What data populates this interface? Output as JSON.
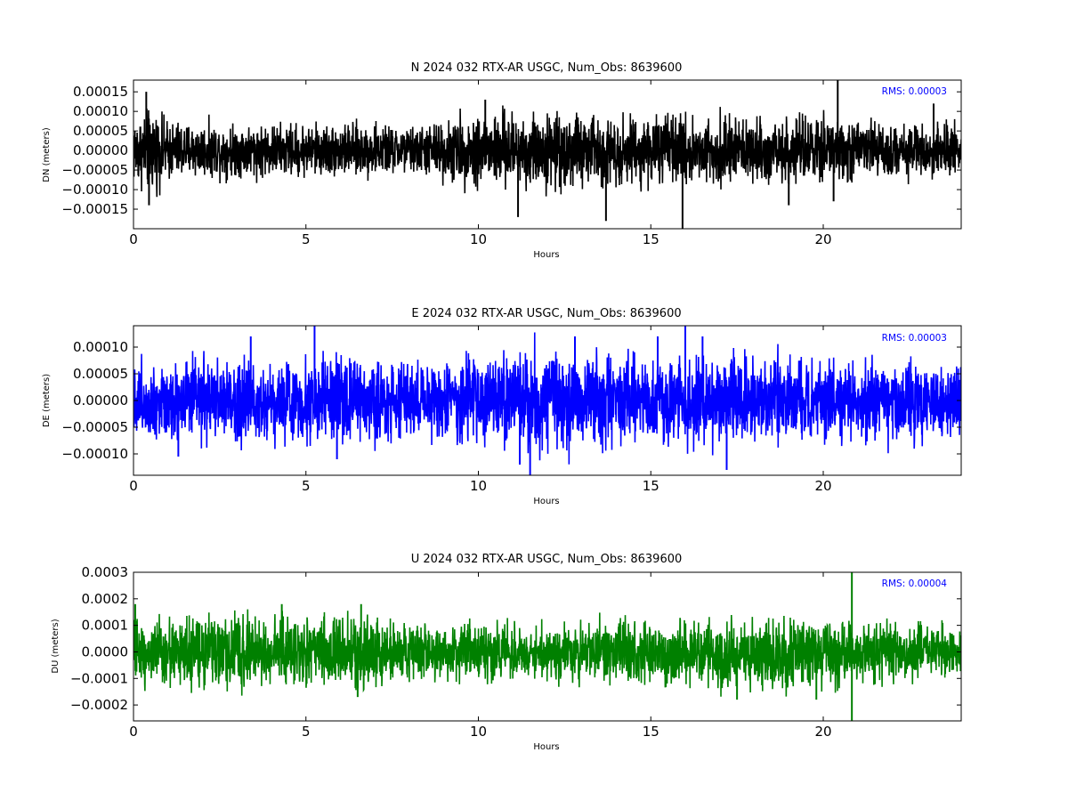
{
  "figure": {
    "background": "#ffffff"
  },
  "chart_data": [
    {
      "type": "line",
      "title": "N 2024 032 RTX-AR  USGC, Num_Obs: 8639600",
      "xlabel": "Hours",
      "ylabel": "DN (meters)",
      "xlim": [
        0,
        24
      ],
      "ylim": [
        -0.0002,
        0.00018
      ],
      "xticks": [
        0,
        5,
        10,
        15,
        20
      ],
      "xtick_labels": [
        "0",
        "5",
        "10",
        "15",
        "20"
      ],
      "yticks": [
        -0.00015,
        -0.0001,
        -5e-05,
        0.0,
        5e-05,
        0.0001,
        0.00015
      ],
      "ytick_labels": [
        "−0.00015",
        "−0.00010",
        "−0.00005",
        "0.00000",
        "0.00005",
        "0.00010",
        "0.00015"
      ],
      "annotation": "RMS:  0.00003",
      "annotation_color": "#0000ff",
      "color": "#000000",
      "series": [
        {
          "envelope": {
            "x": [
              0,
              0.5,
              1,
              2,
              3,
              4,
              5,
              6,
              7,
              8,
              9,
              10,
              11,
              12,
              13,
              14,
              15,
              16,
              17,
              18,
              19,
              20,
              21,
              22,
              23,
              24
            ],
            "upper": [
              9e-05,
              0.00011,
              8e-05,
              7e-05,
              7e-05,
              7e-05,
              7e-05,
              7e-05,
              7e-05,
              6e-05,
              8e-05,
              0.0001,
              0.0001,
              0.0001,
              0.0001,
              9e-05,
              9e-05,
              9e-05,
              9e-05,
              8e-05,
              8e-05,
              9e-05,
              8e-05,
              7e-05,
              7e-05,
              7e-05
            ],
            "lower": [
              -9e-05,
              -0.00011,
              -8e-05,
              -7e-05,
              -7e-05,
              -7e-05,
              -7e-05,
              -7e-05,
              -7e-05,
              -6e-05,
              -8e-05,
              -0.0001,
              -0.0001,
              -0.0001,
              -0.0001,
              -9e-05,
              -9e-05,
              -9e-05,
              -9e-05,
              -8e-05,
              -9e-05,
              -9e-05,
              -8e-05,
              -7e-05,
              -7e-05,
              -7e-05
            ]
          }
        }
      ],
      "spikes": [
        {
          "x": 0.37,
          "y": 0.00015
        },
        {
          "x": 0.45,
          "y": -0.00014
        },
        {
          "x": 11.15,
          "y": -0.00017
        },
        {
          "x": 13.7,
          "y": -0.00018
        },
        {
          "x": 10.2,
          "y": 0.00013
        },
        {
          "x": 15.92,
          "y": -0.0002
        },
        {
          "x": 20.42,
          "y": 0.00018
        },
        {
          "x": 23.2,
          "y": 0.00012
        },
        {
          "x": 19.0,
          "y": -0.00014
        },
        {
          "x": 20.3,
          "y": -0.00013
        }
      ]
    },
    {
      "type": "line",
      "title": "E 2024 032 RTX-AR  USGC, Num_Obs: 8639600",
      "xlabel": "Hours",
      "ylabel": "DE (meters)",
      "xlim": [
        0,
        24
      ],
      "ylim": [
        -0.00014,
        0.00014
      ],
      "xticks": [
        0,
        5,
        10,
        15,
        20
      ],
      "xtick_labels": [
        "0",
        "5",
        "10",
        "15",
        "20"
      ],
      "yticks": [
        -0.0001,
        -5e-05,
        0.0,
        5e-05,
        0.0001
      ],
      "ytick_labels": [
        "−0.00010",
        "−0.00005",
        "0.00000",
        "0.00005",
        "0.00010"
      ],
      "annotation": "RMS:  0.00003",
      "annotation_color": "#0000ff",
      "color": "#0000ff",
      "series": [
        {
          "envelope": {
            "x": [
              0,
              0.5,
              1,
              2,
              3,
              4,
              5,
              6,
              7,
              8,
              9,
              10,
              11,
              12,
              13,
              14,
              15,
              16,
              17,
              18,
              19,
              20,
              21,
              22,
              23,
              24
            ],
            "upper": [
              7e-05,
              8e-05,
              8e-05,
              8e-05,
              8e-05,
              8e-05,
              8e-05,
              8e-05,
              8e-05,
              8e-05,
              8e-05,
              9e-05,
              0.0001,
              0.0001,
              9e-05,
              9e-05,
              8e-05,
              9e-05,
              9e-05,
              8e-05,
              8e-05,
              8e-05,
              8e-05,
              8e-05,
              8e-05,
              7e-05
            ],
            "lower": [
              -7e-05,
              -8e-05,
              -8e-05,
              -8e-05,
              -8e-05,
              -8e-05,
              -8e-05,
              -8e-05,
              -8e-05,
              -8e-05,
              -8e-05,
              -9e-05,
              -0.0001,
              -0.0001,
              -9e-05,
              -9e-05,
              -8e-05,
              -9e-05,
              -9e-05,
              -8e-05,
              -8e-05,
              -8e-05,
              -8e-05,
              -8e-05,
              -8e-05,
              -7e-05
            ]
          }
        }
      ],
      "spikes": [
        {
          "x": 5.25,
          "y": 0.00014
        },
        {
          "x": 16.0,
          "y": 0.00014
        },
        {
          "x": 3.4,
          "y": 0.00012
        },
        {
          "x": 11.5,
          "y": -0.00014
        },
        {
          "x": 11.2,
          "y": -0.00012
        },
        {
          "x": 16.5,
          "y": 0.00012
        },
        {
          "x": 17.2,
          "y": -0.00013
        },
        {
          "x": 15.2,
          "y": 0.00012
        },
        {
          "x": 12.8,
          "y": 0.00012
        },
        {
          "x": 1.3,
          "y": -0.000105
        },
        {
          "x": 5.9,
          "y": -0.00011
        }
      ]
    },
    {
      "type": "line",
      "title": "U 2024 032 RTX-AR  USGC, Num_Obs: 8639600",
      "xlabel": "Hours",
      "ylabel": "DU (meters)",
      "xlim": [
        0,
        24
      ],
      "ylim": [
        -0.00026,
        0.0003
      ],
      "xticks": [
        0,
        5,
        10,
        15,
        20
      ],
      "xtick_labels": [
        "0",
        "5",
        "10",
        "15",
        "20"
      ],
      "yticks": [
        -0.0002,
        -0.0001,
        0.0,
        0.0001,
        0.0002,
        0.0003
      ],
      "ytick_labels": [
        "−0.0002",
        "−0.0001",
        "0.0000",
        "0.0001",
        "0.0002",
        "0.0003"
      ],
      "annotation": "RMS:  0.00004",
      "annotation_color": "#0000ff",
      "color": "#008000",
      "series": [
        {
          "envelope": {
            "x": [
              0,
              0.5,
              1,
              2,
              3,
              4,
              5,
              6,
              7,
              8,
              9,
              10,
              11,
              12,
              13,
              14,
              15,
              16,
              17,
              18,
              19,
              20,
              21,
              22,
              23,
              24
            ],
            "upper": [
              0.00013,
              0.00013,
              0.00013,
              0.00013,
              0.00014,
              0.00015,
              0.00014,
              0.00014,
              0.00013,
              0.00012,
              0.00011,
              0.00011,
              0.00011,
              0.00011,
              0.00012,
              0.00012,
              0.00012,
              0.00011,
              0.00012,
              0.00013,
              0.00014,
              0.00014,
              0.00012,
              0.00011,
              0.0001,
              0.0001
            ],
            "lower": [
              -0.00013,
              -0.00013,
              -0.00013,
              -0.00014,
              -0.00014,
              -0.00014,
              -0.00014,
              -0.00014,
              -0.00013,
              -0.00012,
              -0.00011,
              -0.00011,
              -0.00011,
              -0.00012,
              -0.00012,
              -0.00013,
              -0.00013,
              -0.00013,
              -0.00014,
              -0.00014,
              -0.00015,
              -0.00015,
              -0.00012,
              -0.00011,
              -0.0001,
              -0.0001
            ]
          }
        }
      ],
      "spikes": [
        {
          "x": 0.05,
          "y": 0.00018
        },
        {
          "x": 4.3,
          "y": 0.00018
        },
        {
          "x": 6.6,
          "y": 0.00018
        },
        {
          "x": 20.83,
          "y": 0.0003
        },
        {
          "x": 20.83,
          "y": -0.00026
        },
        {
          "x": 19.8,
          "y": -0.00018
        },
        {
          "x": 17.5,
          "y": -0.00018
        },
        {
          "x": 6.5,
          "y": -0.00017
        }
      ]
    }
  ]
}
